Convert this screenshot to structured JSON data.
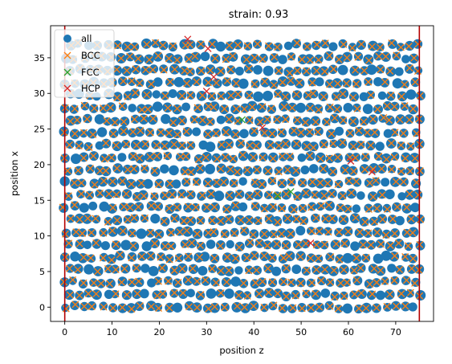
{
  "chart_data": {
    "type": "scatter",
    "title": "strain: 0.93",
    "xlabel": "position z",
    "ylabel": "position x",
    "xlim": [
      -3,
      78
    ],
    "ylim": [
      -2,
      39.5
    ],
    "xticks": [
      0,
      10,
      20,
      30,
      40,
      50,
      60,
      70
    ],
    "yticks": [
      0,
      5,
      10,
      15,
      20,
      25,
      30,
      35
    ],
    "grid": false,
    "legend_position": "top-left",
    "vlines": [
      {
        "x": 0,
        "color": "#b30000"
      },
      {
        "x": 75,
        "color": "#b30000"
      }
    ],
    "lattice": {
      "x_start": 0,
      "x_end": 75,
      "x_step": 2.0,
      "y_start": 0,
      "y_end": 38,
      "y_step": 1.75
    },
    "series": [
      {
        "name": "all",
        "marker": "circle",
        "color": "#1f77b4"
      },
      {
        "name": "BCC",
        "marker": "x",
        "color": "#ff7f0e"
      },
      {
        "name": "FCC",
        "marker": "x",
        "color": "#2ca02c",
        "points": [
          [
            37.5,
            26.3
          ],
          [
            47.8,
            16.2
          ],
          [
            45.0,
            15.6
          ]
        ]
      },
      {
        "name": "HCP",
        "marker": "x",
        "color": "#d62728",
        "points": [
          [
            26.0,
            37.6
          ],
          [
            30.3,
            36.3
          ],
          [
            31.5,
            32.3
          ],
          [
            30.0,
            30.3
          ],
          [
            41.8,
            25.2
          ],
          [
            60.5,
            20.5
          ],
          [
            65.0,
            19.0
          ],
          [
            52.0,
            9.0
          ]
        ]
      }
    ]
  }
}
